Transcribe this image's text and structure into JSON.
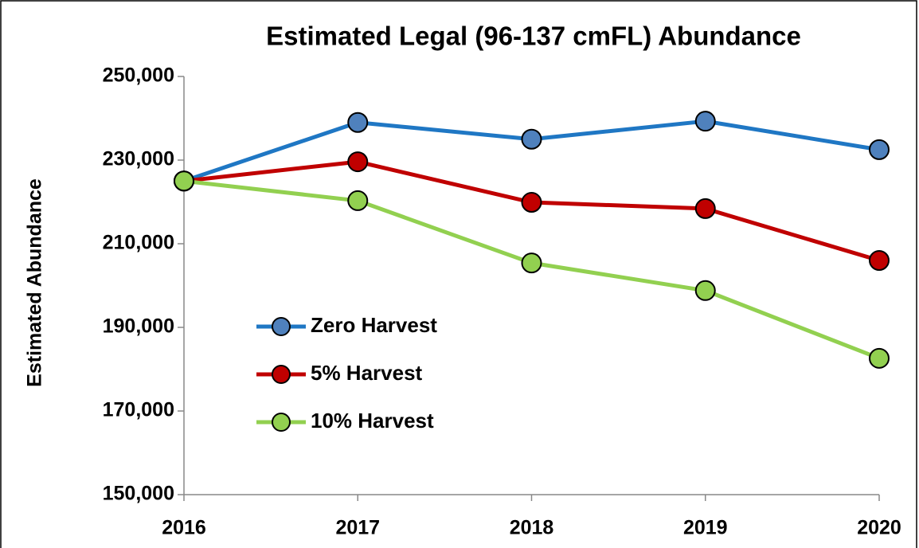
{
  "chart_data": {
    "type": "line",
    "title": "Estimated Legal (96-137 cmFL) Abundance",
    "y_label": "Estimated Abundance",
    "x": [
      2016,
      2017,
      2018,
      2019,
      2020
    ],
    "xlim": [
      2016,
      2020
    ],
    "xticks": [
      2016,
      2017,
      2018,
      2019,
      2020
    ],
    "ylim": [
      150000,
      250000
    ],
    "yticks": [
      {
        "value": 150000,
        "label": "150,000"
      },
      {
        "value": 170000,
        "label": "170,000"
      },
      {
        "value": 190000,
        "label": "190,000"
      },
      {
        "value": 210000,
        "label": "210,000"
      },
      {
        "value": 230000,
        "label": "230,000"
      },
      {
        "value": 250000,
        "label": "250,000"
      }
    ],
    "grid": false,
    "legend": "center-left",
    "series": [
      {
        "name": "Zero Harvest",
        "color": "#1f77c4",
        "marker_color": "#4f81bd",
        "values": [
          225000,
          239000,
          235000,
          239300,
          232500
        ]
      },
      {
        "name": "5% Harvest",
        "color": "#c00000",
        "marker_color": "#c00000",
        "values": [
          225000,
          229600,
          219900,
          218400,
          206000
        ]
      },
      {
        "name": "10% Harvest",
        "color": "#92d050",
        "marker_color": "#92d050",
        "values": [
          225000,
          220300,
          205400,
          198800,
          182600
        ]
      }
    ]
  }
}
